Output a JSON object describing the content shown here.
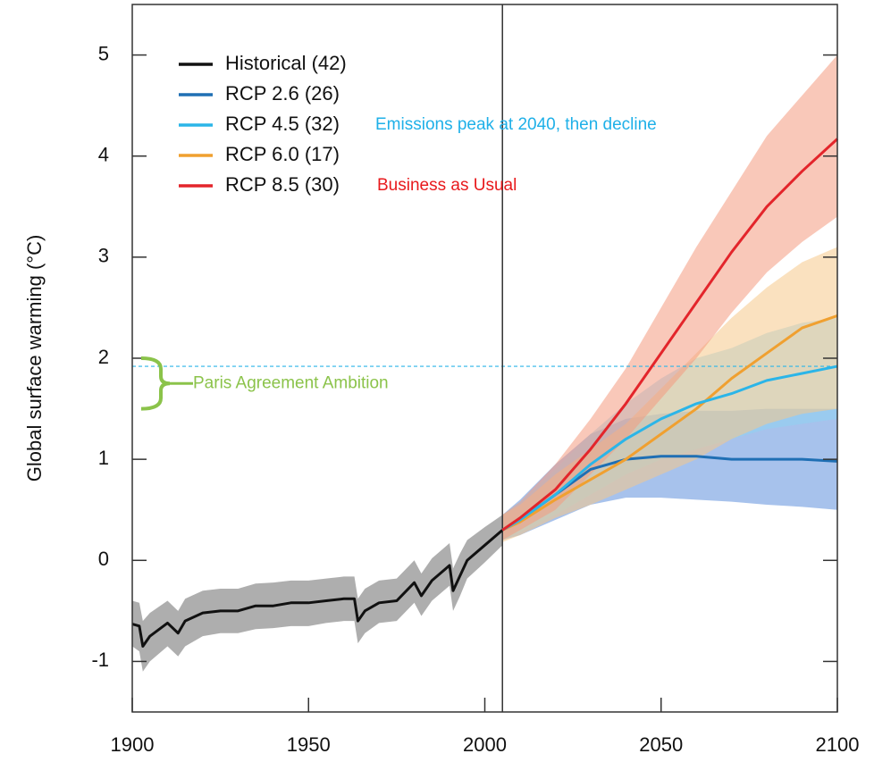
{
  "chart_data": {
    "type": "line",
    "ylabel": "Global surface warming (°C)",
    "xlim": [
      1900,
      2100
    ],
    "ylim": [
      -1.5,
      5.5
    ],
    "xticks": [
      1900,
      1950,
      2000,
      2050,
      2100
    ],
    "yticks": [
      -1,
      0,
      1,
      2,
      3,
      4,
      5
    ],
    "legend": "upper left",
    "vline": 2005,
    "hline": 1.92,
    "bracket": [
      1.5,
      2.0
    ],
    "series": [
      {
        "name": "Historical (42)",
        "color": "#111111",
        "band_color": "#9a9a9a",
        "x": [
          1900,
          1902,
          1903,
          1905,
          1910,
          1913,
          1915,
          1920,
          1925,
          1930,
          1935,
          1940,
          1945,
          1950,
          1955,
          1960,
          1963,
          1964,
          1966,
          1970,
          1975,
          1980,
          1982,
          1985,
          1990,
          1991,
          1993,
          1995,
          2000,
          2005
        ],
        "values": [
          -0.63,
          -0.65,
          -0.85,
          -0.75,
          -0.62,
          -0.72,
          -0.6,
          -0.52,
          -0.5,
          -0.5,
          -0.45,
          -0.45,
          -0.42,
          -0.42,
          -0.4,
          -0.38,
          -0.38,
          -0.6,
          -0.5,
          -0.42,
          -0.4,
          -0.22,
          -0.35,
          -0.2,
          -0.05,
          -0.3,
          -0.15,
          0.0,
          0.15,
          0.3
        ],
        "lower": [
          -0.85,
          -0.9,
          -1.1,
          -1.0,
          -0.85,
          -0.95,
          -0.85,
          -0.75,
          -0.72,
          -0.72,
          -0.68,
          -0.67,
          -0.65,
          -0.65,
          -0.62,
          -0.6,
          -0.6,
          -0.82,
          -0.72,
          -0.62,
          -0.6,
          -0.42,
          -0.55,
          -0.4,
          -0.25,
          -0.5,
          -0.35,
          -0.18,
          -0.02,
          0.15
        ],
        "upper": [
          -0.4,
          -0.42,
          -0.6,
          -0.52,
          -0.4,
          -0.5,
          -0.38,
          -0.3,
          -0.28,
          -0.28,
          -0.23,
          -0.22,
          -0.2,
          -0.2,
          -0.18,
          -0.16,
          -0.16,
          -0.38,
          -0.28,
          -0.2,
          -0.18,
          0.0,
          -0.13,
          0.02,
          0.17,
          -0.08,
          0.07,
          0.2,
          0.33,
          0.45
        ]
      },
      {
        "name": "RCP 2.6 (26)",
        "color": "#1f6fb4",
        "band_color": "#5f8fdc",
        "x": [
          2005,
          2010,
          2020,
          2030,
          2040,
          2050,
          2060,
          2070,
          2080,
          2090,
          2100
        ],
        "values": [
          0.3,
          0.4,
          0.65,
          0.9,
          1.0,
          1.03,
          1.03,
          1.0,
          1.0,
          1.0,
          0.98
        ],
        "lower": [
          0.2,
          0.25,
          0.4,
          0.55,
          0.62,
          0.62,
          0.6,
          0.58,
          0.55,
          0.53,
          0.5
        ],
        "upper": [
          0.45,
          0.6,
          0.95,
          1.25,
          1.4,
          1.45,
          1.48,
          1.48,
          1.5,
          1.5,
          1.5
        ]
      },
      {
        "name": "RCP 4.5 (32)",
        "color": "#2bb5e8",
        "band_color": "#8fd4f2",
        "x": [
          2005,
          2010,
          2020,
          2030,
          2040,
          2050,
          2060,
          2070,
          2080,
          2090,
          2100
        ],
        "values": [
          0.3,
          0.4,
          0.65,
          0.95,
          1.2,
          1.4,
          1.55,
          1.65,
          1.78,
          1.85,
          1.92
        ],
        "lower": [
          0.2,
          0.28,
          0.45,
          0.65,
          0.85,
          1.0,
          1.1,
          1.2,
          1.3,
          1.35,
          1.4
        ],
        "upper": [
          0.45,
          0.58,
          0.9,
          1.25,
          1.55,
          1.8,
          2.0,
          2.1,
          2.25,
          2.35,
          2.4
        ]
      },
      {
        "name": "RCP 6.0 (17)",
        "color": "#f0a030",
        "band_color": "#f6c88a",
        "x": [
          2005,
          2010,
          2020,
          2030,
          2040,
          2050,
          2060,
          2070,
          2080,
          2090,
          2100
        ],
        "values": [
          0.3,
          0.38,
          0.6,
          0.8,
          1.0,
          1.25,
          1.5,
          1.8,
          2.05,
          2.3,
          2.42
        ],
        "lower": [
          0.18,
          0.25,
          0.42,
          0.55,
          0.7,
          0.85,
          1.0,
          1.2,
          1.35,
          1.45,
          1.5
        ],
        "upper": [
          0.45,
          0.55,
          0.85,
          1.1,
          1.35,
          1.7,
          2.05,
          2.4,
          2.7,
          2.95,
          3.1
        ]
      },
      {
        "name": "RCP 8.5 (30)",
        "color": "#e3252b",
        "band_color": "#f49a80",
        "x": [
          2005,
          2010,
          2020,
          2030,
          2040,
          2050,
          2060,
          2070,
          2080,
          2090,
          2100
        ],
        "values": [
          0.3,
          0.42,
          0.7,
          1.1,
          1.55,
          2.05,
          2.55,
          3.05,
          3.5,
          3.85,
          4.17
        ],
        "lower": [
          0.2,
          0.3,
          0.5,
          0.85,
          1.2,
          1.6,
          2.0,
          2.45,
          2.85,
          3.15,
          3.4
        ],
        "upper": [
          0.45,
          0.58,
          0.95,
          1.4,
          1.9,
          2.5,
          3.1,
          3.65,
          4.2,
          4.6,
          5.0
        ]
      }
    ],
    "annotations": [
      {
        "text": "Emissions peak at 2040, then decline",
        "color": "#1fb0e8"
      },
      {
        "text": "Business as Usual",
        "color": "#e8191c"
      },
      {
        "text": "Paris Agreement Ambition",
        "color": "#8bc34a"
      }
    ]
  }
}
